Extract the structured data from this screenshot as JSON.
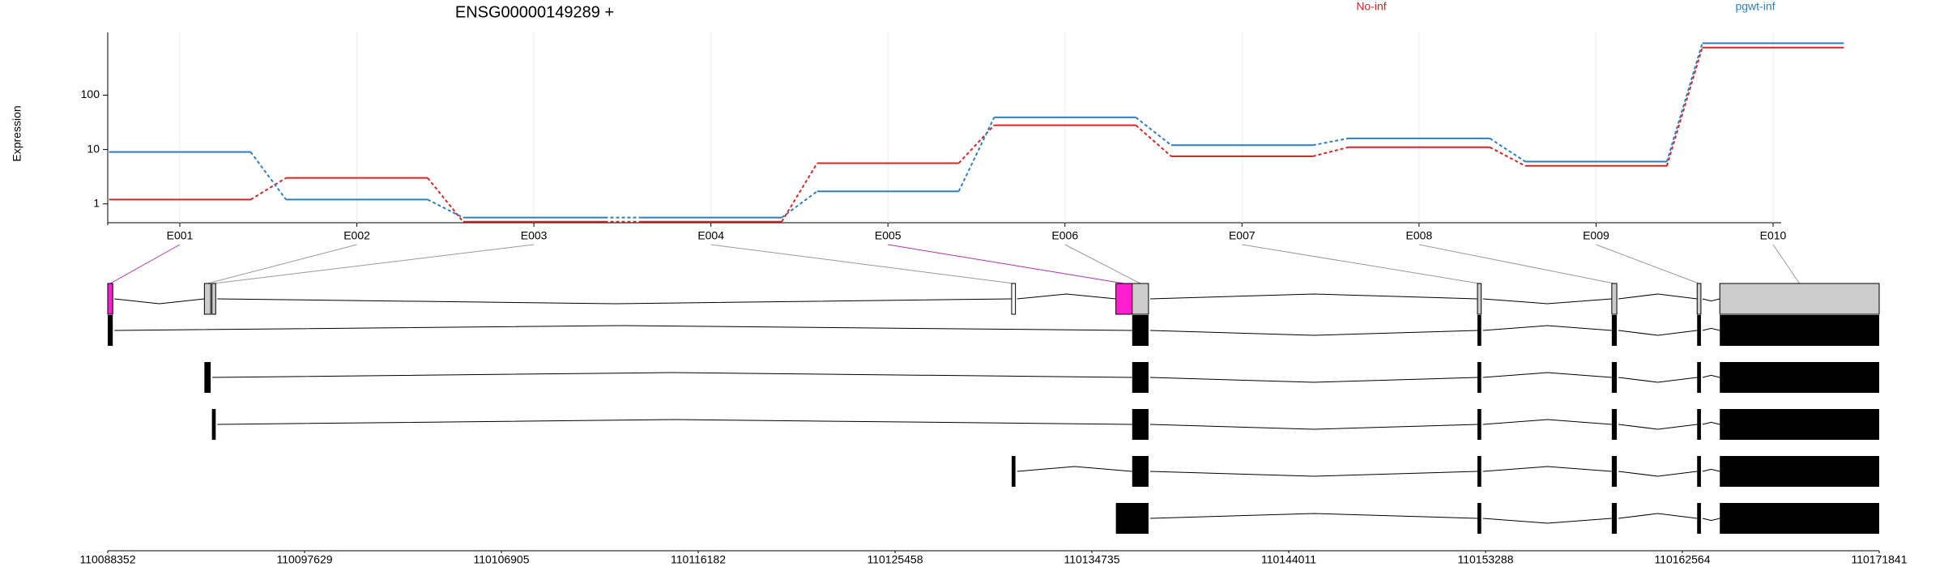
{
  "chart_data": {
    "type": "line",
    "title": "ENSG00000149289 +",
    "ylabel": "Expression",
    "log_scale": true,
    "grid": true,
    "categories": [
      "E001",
      "E002",
      "E003",
      "E004",
      "E005",
      "E006",
      "E007",
      "E008",
      "E009",
      "E010"
    ],
    "series": [
      {
        "name": "No-inf",
        "color": "#d62728",
        "values": [
          1.2,
          3,
          0.47,
          0.47,
          5.6,
          28,
          7.5,
          11,
          5,
          750
        ]
      },
      {
        "name": "pgwt-inf",
        "color": "#2f7ebd",
        "values": [
          9,
          1.2,
          0.56,
          0.56,
          1.7,
          39,
          12,
          16,
          6,
          900
        ]
      }
    ],
    "ylim": [
      0.45,
      1200
    ],
    "yticks": [
      1,
      10,
      100
    ],
    "exons": [
      {
        "start": 110088352,
        "end": 110088589,
        "color": "#ff1fd0"
      },
      {
        "start": 110092908,
        "end": 110093204,
        "color": "#cccccc"
      },
      {
        "start": 110093263,
        "end": 110093441,
        "color": "#cccccc"
      },
      {
        "start": 110130954,
        "end": 110131132,
        "color": "#ffffff"
      },
      {
        "start": 110135866,
        "end": 110136635,
        "color": "#ff1fd0"
      },
      {
        "start": 110136635,
        "end": 110137404,
        "color": "#cccccc"
      },
      {
        "start": 110152907,
        "end": 110153085,
        "color": "#cccccc"
      },
      {
        "start": 110159238,
        "end": 110159475,
        "color": "#cccccc"
      },
      {
        "start": 110163261,
        "end": 110163439,
        "color": "#cccccc"
      },
      {
        "start": 110164329,
        "end": 110171841,
        "color": "#cccccc"
      }
    ],
    "transcripts": [
      [
        [
          110088352,
          110088589
        ],
        [
          110136635,
          110137404
        ],
        [
          110152907,
          110153085
        ],
        [
          110159238,
          110159475
        ],
        [
          110163261,
          110163439
        ],
        [
          110164329,
          110171841
        ]
      ],
      [
        [
          110092908,
          110093204
        ],
        [
          110136635,
          110137404
        ],
        [
          110152907,
          110153085
        ],
        [
          110159238,
          110159475
        ],
        [
          110163261,
          110163439
        ],
        [
          110164329,
          110171841
        ]
      ],
      [
        [
          110093263,
          110093441
        ],
        [
          110136635,
          110137404
        ],
        [
          110152907,
          110153085
        ],
        [
          110159238,
          110159475
        ],
        [
          110163261,
          110163439
        ],
        [
          110164329,
          110171841
        ]
      ],
      [
        [
          110130954,
          110131132
        ],
        [
          110136635,
          110137404
        ],
        [
          110152907,
          110153085
        ],
        [
          110159238,
          110159475
        ],
        [
          110163261,
          110163439
        ],
        [
          110164329,
          110171841
        ]
      ],
      [
        [
          110135866,
          110137404
        ],
        [
          110152907,
          110153085
        ],
        [
          110159238,
          110159475
        ],
        [
          110163261,
          110163439
        ],
        [
          110164329,
          110171841
        ]
      ]
    ],
    "genome_xlim": [
      110088352,
      110171841
    ],
    "genome_xticks": [
      110088352,
      110097629,
      110106905,
      110116182,
      110125458,
      110134735,
      110144011,
      110153288,
      110162564,
      110171841
    ]
  }
}
